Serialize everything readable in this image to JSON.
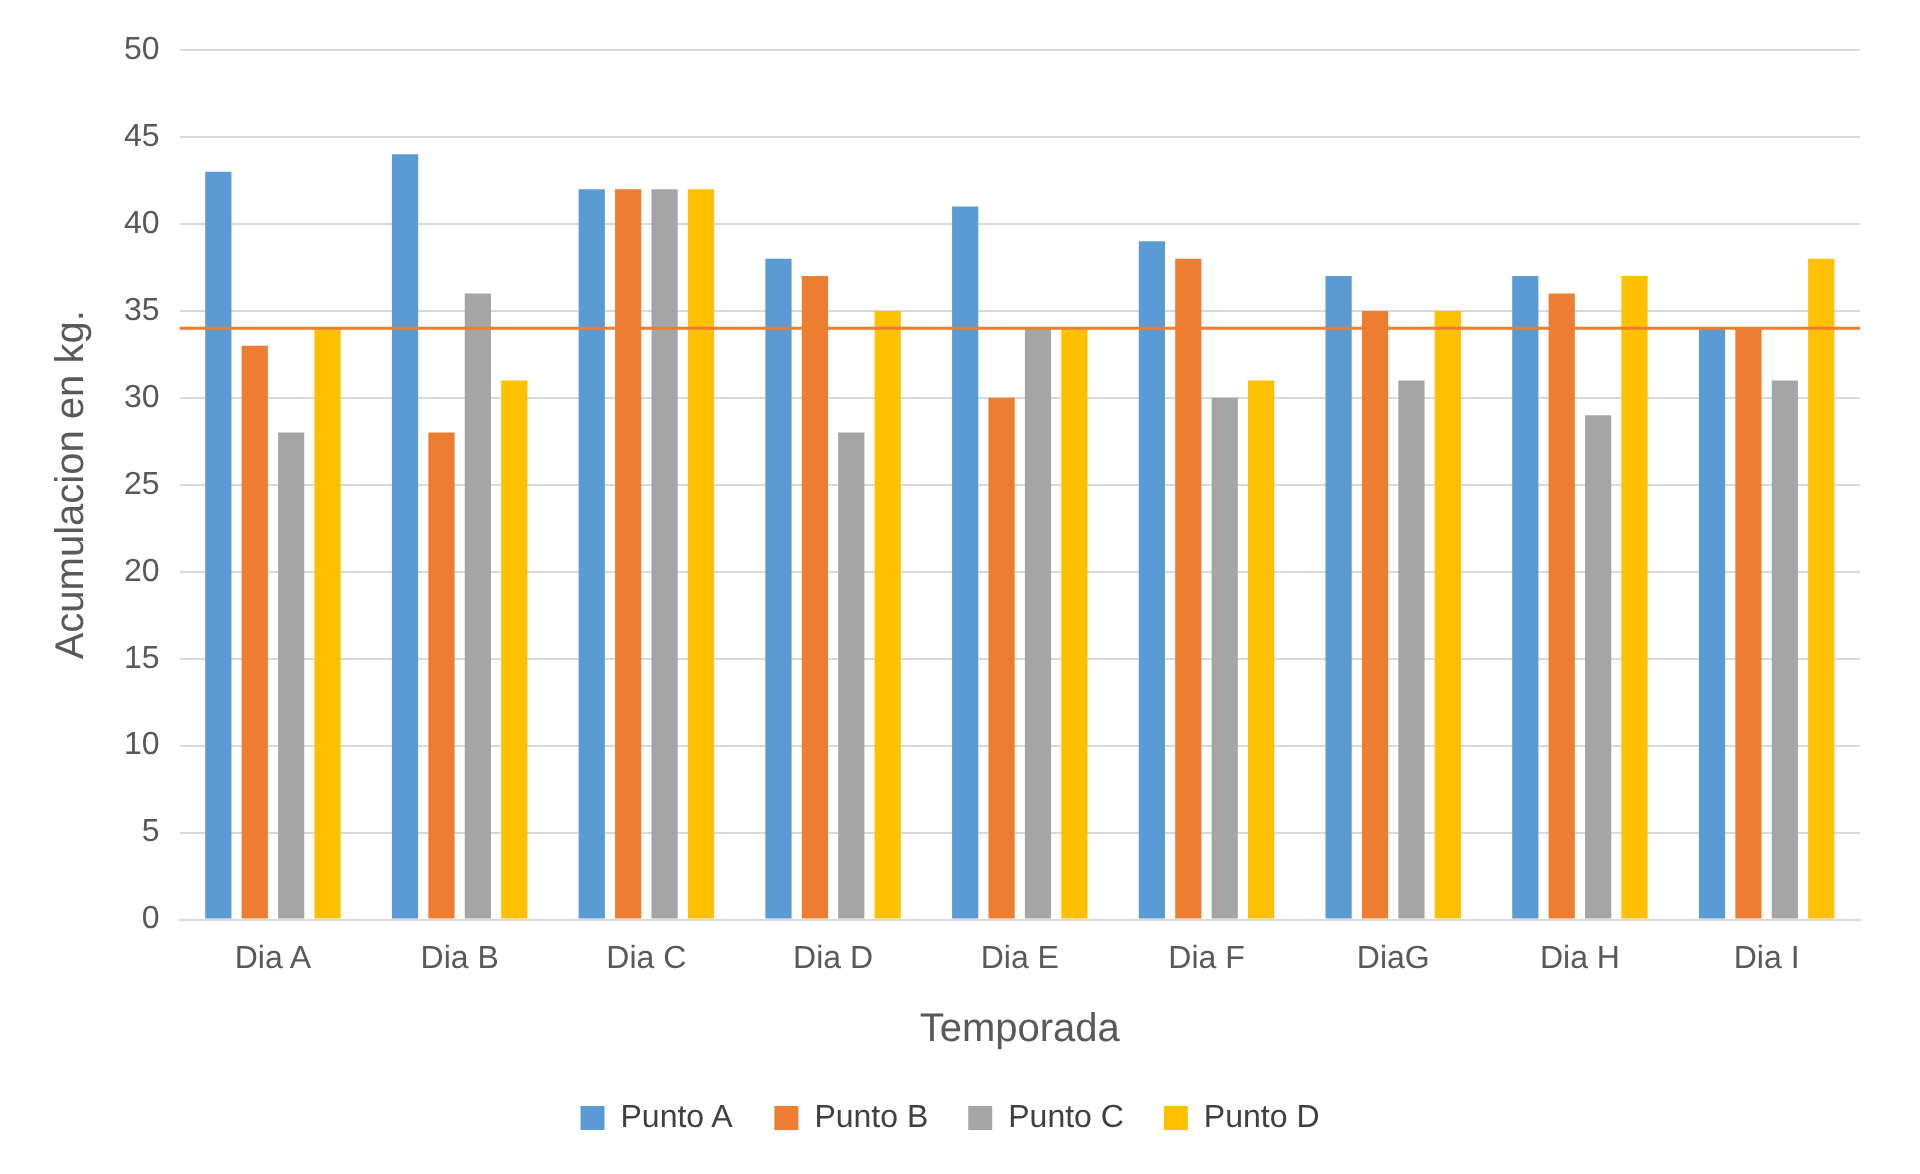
{
  "chart_data": {
    "type": "bar",
    "xlabel": "Temporada",
    "ylabel": "Acumulacion en kg.",
    "categories": [
      "Dia A",
      "Dia B",
      "Dia C",
      "Dia D",
      "Dia E",
      "Dia F",
      "DiaG",
      "Dia H",
      "Dia I"
    ],
    "series": [
      {
        "name": "Punto A",
        "color": "#5b9bd5",
        "values": [
          43,
          44,
          42,
          38,
          41,
          39,
          37,
          37,
          34
        ]
      },
      {
        "name": "Punto B",
        "color": "#ed7d31",
        "values": [
          33,
          28,
          42,
          37,
          30,
          38,
          35,
          36,
          34
        ]
      },
      {
        "name": "Punto C",
        "color": "#a5a5a5",
        "values": [
          28,
          36,
          42,
          28,
          34,
          30,
          31,
          29,
          31
        ]
      },
      {
        "name": "Punto D",
        "color": "#ffc000",
        "values": [
          34,
          31,
          42,
          35,
          34,
          31,
          35,
          37,
          38
        ]
      }
    ],
    "ylim": [
      0,
      50
    ],
    "yticks": [
      0,
      5,
      10,
      15,
      20,
      25,
      30,
      35,
      40,
      45,
      50
    ],
    "ref_lines": [
      {
        "axis": "y",
        "value": 34,
        "color": "#ed7d31"
      }
    ],
    "grid": "y",
    "legend": "bottom"
  }
}
